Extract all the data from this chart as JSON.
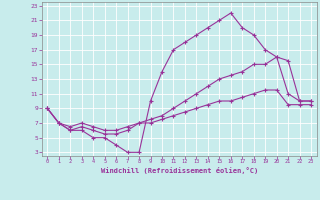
{
  "title": "",
  "xlabel": "Windchill (Refroidissement éolien,°C)",
  "ylabel": "",
  "xlim": [
    -0.5,
    23.5
  ],
  "ylim": [
    2.5,
    23.5
  ],
  "xticks": [
    0,
    1,
    2,
    3,
    4,
    5,
    6,
    7,
    8,
    9,
    10,
    11,
    12,
    13,
    14,
    15,
    16,
    17,
    18,
    19,
    20,
    21,
    22,
    23
  ],
  "yticks": [
    3,
    5,
    7,
    9,
    11,
    13,
    15,
    17,
    19,
    21,
    23
  ],
  "bg_color": "#c8ecec",
  "line_color": "#993399",
  "grid_color": "#ffffff",
  "line1_x": [
    0,
    1,
    2,
    3,
    4,
    5,
    6,
    7,
    8,
    9,
    10,
    11,
    12,
    13,
    14,
    15,
    16,
    17,
    18,
    19,
    20,
    21,
    22,
    23
  ],
  "line1_y": [
    9,
    7,
    6,
    6,
    5,
    5,
    4,
    3,
    3,
    10,
    14,
    17,
    18,
    19,
    20,
    21,
    22,
    20,
    19,
    17,
    16,
    11,
    10,
    10
  ],
  "line2_x": [
    0,
    1,
    2,
    3,
    4,
    5,
    6,
    7,
    8,
    9,
    10,
    11,
    12,
    13,
    14,
    15,
    16,
    17,
    18,
    19,
    20,
    21,
    22,
    23
  ],
  "line2_y": [
    9,
    7,
    6.5,
    7,
    6.5,
    6,
    6,
    6.5,
    7,
    7.5,
    8,
    9,
    10,
    11,
    12,
    13,
    13.5,
    14,
    15,
    15,
    16,
    15.5,
    10,
    10
  ],
  "line3_x": [
    0,
    1,
    2,
    3,
    4,
    5,
    6,
    7,
    8,
    9,
    10,
    11,
    12,
    13,
    14,
    15,
    16,
    17,
    18,
    19,
    20,
    21,
    22,
    23
  ],
  "line3_y": [
    9,
    7,
    6,
    6.5,
    6,
    5.5,
    5.5,
    6,
    7,
    7,
    7.5,
    8,
    8.5,
    9,
    9.5,
    10,
    10,
    10.5,
    11,
    11.5,
    11.5,
    9.5,
    9.5,
    9.5
  ]
}
